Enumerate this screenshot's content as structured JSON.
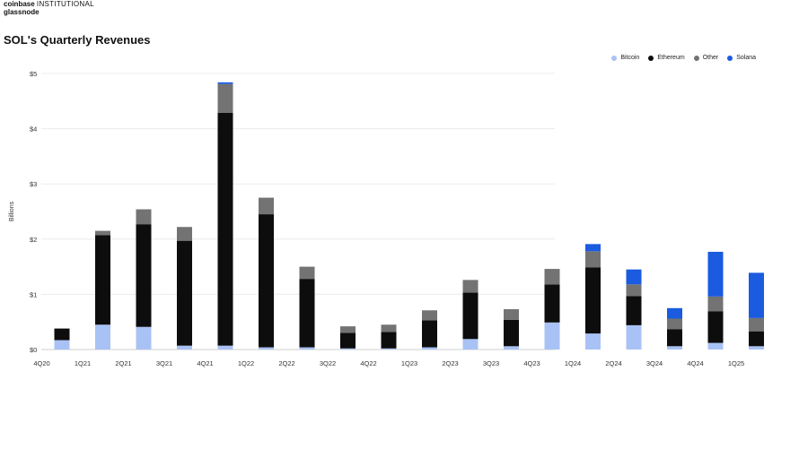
{
  "brand": {
    "line1_bold": "coinbase",
    "line1_rest": "INSTITUTIONAL",
    "line2": "glassnode"
  },
  "colors": {
    "Bitcoin": "#a9c2f5",
    "Ethereum": "#0d0d0d",
    "Other": "#737373",
    "Solana": "#1a5be0"
  },
  "chart_data": {
    "type": "bar",
    "stacked": true,
    "title": "SOL's Quarterly Revenues",
    "xlabel": "",
    "ylabel": "Billions",
    "ylim": [
      0,
      5
    ],
    "yticks": [
      "$0",
      "$1",
      "$2",
      "$3",
      "$4",
      "$5"
    ],
    "ytick_values": [
      0,
      1,
      2,
      3,
      4,
      5
    ],
    "grid": true,
    "legend_position": "top-right",
    "categories": [
      "4Q20",
      "1Q21",
      "2Q21",
      "3Q21",
      "4Q21",
      "1Q22",
      "2Q22",
      "3Q22",
      "4Q22",
      "1Q23",
      "2Q23",
      "3Q23",
      "4Q23",
      "1Q24",
      "2Q24",
      "3Q24",
      "4Q24",
      "1Q25"
    ],
    "series": [
      {
        "name": "Bitcoin",
        "values": [
          0.17,
          0.45,
          0.41,
          0.07,
          0.07,
          0.04,
          0.04,
          0.02,
          0.02,
          0.04,
          0.19,
          0.06,
          0.49,
          0.29,
          0.44,
          0.06,
          0.12,
          0.06
        ]
      },
      {
        "name": "Ethereum",
        "values": [
          0.21,
          1.62,
          1.86,
          1.9,
          4.22,
          2.41,
          1.24,
          0.28,
          0.3,
          0.49,
          0.84,
          0.48,
          0.69,
          1.2,
          0.53,
          0.31,
          0.57,
          0.27
        ]
      },
      {
        "name": "Other",
        "values": [
          0.0,
          0.08,
          0.27,
          0.25,
          0.52,
          0.3,
          0.22,
          0.12,
          0.13,
          0.18,
          0.23,
          0.19,
          0.28,
          0.29,
          0.21,
          0.19,
          0.27,
          0.24
        ]
      },
      {
        "name": "Solana",
        "values": [
          0.0,
          0.0,
          0.0,
          0.0,
          0.03,
          0.0,
          0.0,
          0.0,
          0.0,
          0.0,
          0.0,
          0.0,
          0.0,
          0.13,
          0.27,
          0.19,
          0.81,
          0.82
        ]
      }
    ]
  }
}
